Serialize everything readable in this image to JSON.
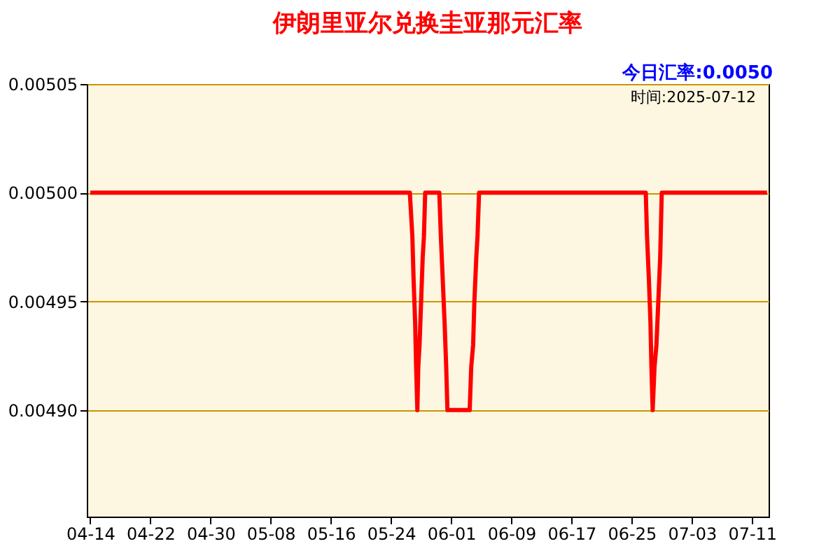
{
  "chart_data": {
    "type": "line",
    "title": "伊朗里亚尔兑换圭亚那元汇率",
    "annotations": [
      "今日汇率:0.0050",
      "时间:2025-07-12"
    ],
    "series": [
      {
        "color": "#ff0000",
        "x": [
          "2025-04-14T00:00",
          "2025-05-26T12:00",
          "2025-05-26T20:00",
          "2025-05-27T00:00",
          "2025-05-27T05:00",
          "2025-05-27T08:00",
          "2025-05-27T12:00",
          "2025-05-27T15:00",
          "2025-05-27T19:00",
          "2025-05-28T00:00",
          "2025-05-28T05:00",
          "2025-05-28T09:00",
          "2025-05-28T13:00",
          "2025-05-30T10:00",
          "2025-05-30T15:00",
          "2025-05-30T21:00",
          "2025-05-31T03:00",
          "2025-05-31T08:00",
          "2025-05-31T12:00",
          "2025-06-03T11:00",
          "2025-06-03T16:00",
          "2025-06-03T22:00",
          "2025-06-04T02:00",
          "2025-06-04T08:00",
          "2025-06-04T12:00",
          "2025-06-04T17:00",
          "2025-06-26T21:00",
          "2025-06-27T01:00",
          "2025-06-27T07:00",
          "2025-06-27T12:00",
          "2025-06-27T15:00",
          "2025-06-27T19:00",
          "2025-06-28T01:00",
          "2025-06-28T07:00",
          "2025-06-28T13:00",
          "2025-06-28T19:00",
          "2025-06-29T00:00",
          "2025-07-13T00:00"
        ],
        "values": [
          0.005,
          0.005,
          0.00498,
          0.00496,
          0.00494,
          0.00492,
          0.0049,
          0.00492,
          0.00493,
          0.00495,
          0.00497,
          0.00498,
          0.005,
          0.005,
          0.00498,
          0.00496,
          0.00494,
          0.00492,
          0.0049,
          0.0049,
          0.00492,
          0.00493,
          0.00495,
          0.00497,
          0.00498,
          0.005,
          0.005,
          0.00498,
          0.00496,
          0.00494,
          0.00492,
          0.0049,
          0.00492,
          0.00493,
          0.00495,
          0.00497,
          0.005,
          0.005
        ]
      }
    ],
    "xlim": [
      "2025-04-13T13:00",
      "2025-07-13T05:00"
    ],
    "xticks": [
      {
        "value": "2025-04-14",
        "label": "04-14"
      },
      {
        "value": "2025-04-22",
        "label": "04-22"
      },
      {
        "value": "2025-04-30",
        "label": "04-30"
      },
      {
        "value": "2025-05-08",
        "label": "05-08"
      },
      {
        "value": "2025-05-16",
        "label": "05-16"
      },
      {
        "value": "2025-05-24",
        "label": "05-24"
      },
      {
        "value": "2025-06-01",
        "label": "06-01"
      },
      {
        "value": "2025-06-09",
        "label": "06-09"
      },
      {
        "value": "2025-06-17",
        "label": "06-17"
      },
      {
        "value": "2025-06-25",
        "label": "06-25"
      },
      {
        "value": "2025-07-03",
        "label": "07-03"
      },
      {
        "value": "2025-07-11",
        "label": "07-11"
      }
    ],
    "ylim": [
      0.004851,
      0.00505
    ],
    "yticks": [
      {
        "value": 0.0049,
        "label": "0.00490"
      },
      {
        "value": 0.00495,
        "label": "0.00495"
      },
      {
        "value": 0.005,
        "label": "0.00500"
      },
      {
        "value": 0.00505,
        "label": "0.00505"
      }
    ],
    "grid": "y",
    "marker": "none",
    "line_style": "solid"
  }
}
